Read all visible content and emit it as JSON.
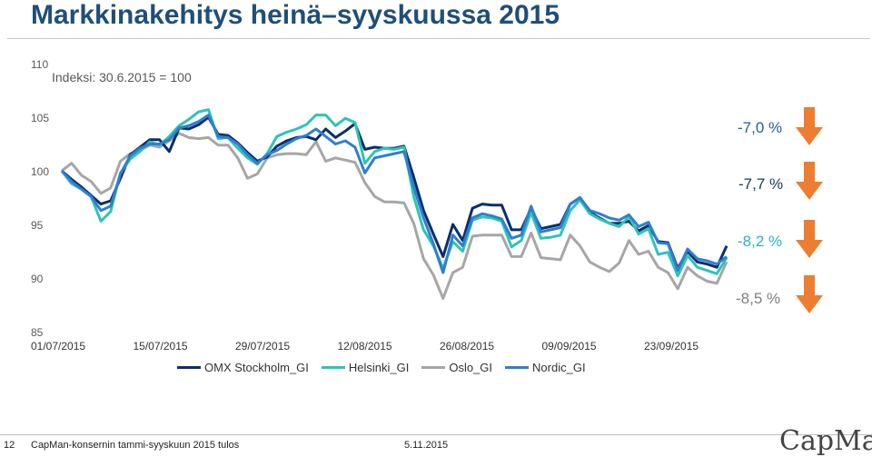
{
  "header": {
    "title": "Markkinakehitys heinä–syyskuussa 2015",
    "note": "Indeksi: 30.6.2015 = 100"
  },
  "footer": {
    "page": "12",
    "text": "CapMan-konsernin tammi-syyskuun 2015 tulos",
    "date": "5.11.2015",
    "logo": "CapMan"
  },
  "deltas": [
    {
      "text": "-7,0 %",
      "color": "#1f5e99",
      "arrow_color": "#ed7d31"
    },
    {
      "text": "-7,7 %",
      "color": "#1f3864",
      "arrow_color": "#ed7d31"
    },
    {
      "text": "-8,2 %",
      "color": "#2ab5b0",
      "arrow_color": "#ed7d31"
    },
    {
      "text": "-8,5 %",
      "color": "#7f7f7f",
      "arrow_color": "#ed7d31"
    }
  ],
  "chart_data": {
    "type": "line",
    "ylim": [
      85,
      110
    ],
    "yticks": [
      "85",
      "90",
      "95",
      "100",
      "105",
      "110"
    ],
    "xticks": [
      "01/07/2015",
      "15/07/2015",
      "29/07/2015",
      "12/08/2015",
      "26/08/2015",
      "09/09/2015",
      "23/09/2015"
    ],
    "series": [
      {
        "name": "OMX Stockholm_GI",
        "color": "#0d2d6b",
        "values": [
          100.0,
          99.2,
          98.5,
          97.7,
          96.9,
          97.2,
          99.3,
          101.5,
          102.2,
          102.9,
          102.9,
          101.8,
          104.0,
          103.9,
          104.3,
          105.0,
          103.4,
          103.3,
          102.6,
          101.7,
          100.9,
          101.3,
          102.3,
          102.8,
          103.1,
          103.2,
          102.9,
          103.9,
          103.1,
          103.7,
          104.4,
          102.0,
          102.2,
          102.1,
          102.1,
          102.3,
          99.4,
          96.3,
          94.1,
          92.0,
          95.0,
          93.5,
          96.5,
          96.9,
          96.8,
          96.8,
          94.5,
          94.5,
          96.5,
          94.6,
          94.8,
          95.0,
          96.9,
          97.5,
          96.1,
          95.6,
          95.1,
          95.1,
          95.3,
          94.4,
          94.9,
          93.4,
          93.3,
          90.9,
          92.5,
          91.5,
          91.3,
          91.0,
          93.0
        ]
      },
      {
        "name": "Helsinki_GI",
        "color": "#2ec4b6",
        "values": [
          100.0,
          98.8,
          98.3,
          97.6,
          95.3,
          96.2,
          99.8,
          101.1,
          101.8,
          102.7,
          102.4,
          103.2,
          104.2,
          104.8,
          105.5,
          105.7,
          103.0,
          103.1,
          102.1,
          101.2,
          100.6,
          101.6,
          103.2,
          103.6,
          103.9,
          104.3,
          105.2,
          105.2,
          104.2,
          104.9,
          104.5,
          100.7,
          101.8,
          102.1,
          102.0,
          102.2,
          97.6,
          94.5,
          93.0,
          90.9,
          93.4,
          92.5,
          95.4,
          95.7,
          95.6,
          95.3,
          92.9,
          93.5,
          96.1,
          93.7,
          93.8,
          94.0,
          96.3,
          97.3,
          96.0,
          95.5,
          95.1,
          94.8,
          95.7,
          94.1,
          94.6,
          92.2,
          92.4,
          90.2,
          92.1,
          91.0,
          90.7,
          90.4,
          91.9
        ]
      },
      {
        "name": "Oslo_GI",
        "color": "#a6a6a6",
        "values": [
          100.0,
          100.7,
          99.6,
          99.0,
          97.9,
          98.4,
          100.9,
          101.6,
          101.9,
          102.4,
          102.2,
          102.8,
          103.5,
          103.1,
          103.0,
          103.1,
          102.4,
          102.4,
          101.2,
          99.3,
          99.7,
          101.2,
          101.5,
          101.6,
          101.6,
          101.5,
          102.7,
          100.9,
          101.2,
          101.0,
          100.8,
          98.9,
          97.6,
          97.1,
          97.1,
          97.0,
          95.1,
          91.8,
          90.3,
          88.1,
          90.5,
          91.0,
          93.9,
          94.0,
          94.0,
          94.0,
          92.0,
          92.0,
          94.2,
          91.9,
          91.8,
          91.7,
          94.0,
          93.0,
          91.5,
          91.0,
          90.6,
          91.4,
          93.5,
          92.2,
          92.5,
          91.0,
          90.5,
          89.0,
          91.0,
          90.2,
          89.7,
          89.5,
          91.5
        ]
      },
      {
        "name": "Nordic_GI",
        "color": "#2e7fd1",
        "values": [
          100.0,
          99.0,
          98.3,
          97.6,
          96.3,
          96.7,
          99.7,
          101.4,
          102.1,
          102.5,
          102.5,
          102.9,
          104.0,
          104.2,
          104.6,
          105.2,
          103.2,
          103.1,
          102.5,
          101.5,
          100.7,
          101.5,
          101.9,
          102.5,
          103.0,
          103.3,
          103.9,
          103.2,
          102.5,
          102.8,
          102.2,
          99.8,
          101.2,
          101.4,
          101.6,
          101.8,
          98.5,
          95.6,
          93.2,
          90.5,
          94.0,
          93.0,
          95.6,
          96.0,
          95.8,
          95.5,
          93.7,
          94.0,
          96.7,
          94.3,
          94.5,
          94.7,
          96.9,
          97.5,
          96.3,
          96.0,
          95.6,
          95.4,
          95.9,
          94.8,
          95.2,
          93.3,
          93.2,
          90.7,
          92.7,
          91.8,
          91.6,
          91.3,
          92.0
        ]
      }
    ]
  }
}
